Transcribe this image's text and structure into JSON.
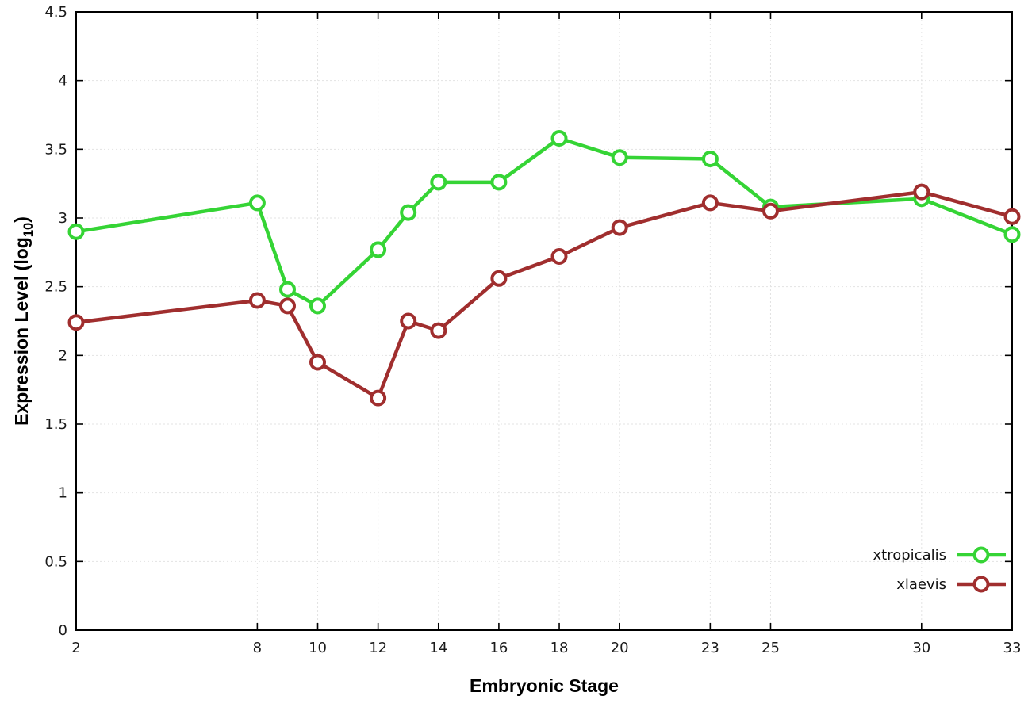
{
  "chart_data": {
    "type": "line",
    "title": "",
    "xlabel": "Embryonic Stage",
    "ylabel": "Expression Level (log10)",
    "ylabel_parts": {
      "prefix": "Expression Level (log",
      "sub": "10",
      "suffix": ")"
    },
    "xlim": [
      2,
      33
    ],
    "ylim": [
      0,
      4.5
    ],
    "x_ticks": [
      2,
      8,
      10,
      12,
      14,
      16,
      18,
      20,
      23,
      25,
      30,
      33
    ],
    "y_ticks": [
      0,
      0.5,
      1,
      1.5,
      2,
      2.5,
      3,
      3.5,
      4,
      4.5
    ],
    "grid": true,
    "legend_position": "bottom-right",
    "x": [
      2,
      8,
      9,
      10,
      12,
      13,
      14,
      16,
      18,
      20,
      23,
      25,
      30,
      33
    ],
    "series": [
      {
        "name": "xtropicalis",
        "color": "#35d435",
        "values": [
          2.9,
          3.11,
          2.48,
          2.36,
          2.77,
          3.04,
          3.26,
          3.26,
          3.58,
          3.44,
          3.43,
          3.08,
          3.14,
          2.88
        ]
      },
      {
        "name": "xlaevis",
        "color": "#a02e2e",
        "values": [
          2.24,
          2.4,
          2.36,
          1.95,
          1.69,
          2.25,
          2.18,
          2.56,
          2.72,
          2.93,
          3.11,
          3.05,
          3.19,
          3.01
        ]
      }
    ]
  }
}
